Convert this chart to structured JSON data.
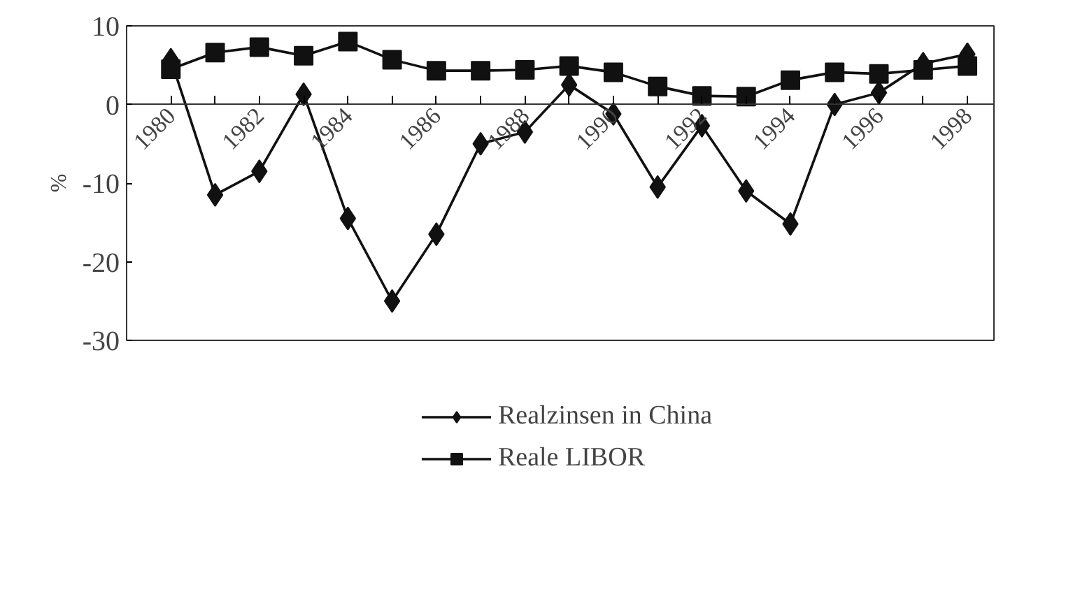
{
  "chart_data": {
    "type": "line",
    "ylabel": "%",
    "x": [
      1980,
      1981,
      1982,
      1983,
      1984,
      1985,
      1986,
      1987,
      1988,
      1989,
      1990,
      1991,
      1992,
      1993,
      1994,
      1995,
      1996,
      1997,
      1998
    ],
    "series": [
      {
        "name": "Realzinsen in China",
        "color": "#111111",
        "marker": "diamond",
        "values": [
          5.7,
          -11.5,
          -8.5,
          1.3,
          -14.5,
          -25,
          -16.5,
          -5,
          -3.5,
          2.5,
          -1.2,
          -10.5,
          -2.7,
          -11,
          -15.2,
          0,
          1.5,
          5.2,
          6.4
        ]
      },
      {
        "name": "Reale LIBOR",
        "color": "#111111",
        "marker": "square",
        "values": [
          4.5,
          6.6,
          7.3,
          6.2,
          8,
          5.7,
          4.3,
          4.3,
          4.4,
          4.9,
          4.1,
          2.3,
          1.1,
          1,
          3.1,
          4.1,
          3.9,
          4.4,
          4.9
        ]
      }
    ],
    "xlim": [
      1979.0,
      1998.6
    ],
    "ylim": [
      -30,
      10
    ],
    "xticks": [
      1980,
      {
        "value": 1981,
        "label": null
      },
      1982,
      {
        "value": 1983,
        "label": null
      },
      1984,
      {
        "value": 1985,
        "label": null
      },
      1986,
      {
        "value": 1987,
        "label": null
      },
      1988,
      {
        "value": 1989,
        "label": null
      },
      1990,
      {
        "value": 1991,
        "label": null
      },
      1992,
      {
        "value": 1993,
        "label": null
      },
      1994,
      {
        "value": 1995,
        "label": null
      },
      1996,
      {
        "value": 1997,
        "label": null
      },
      1998
    ],
    "yticks": [
      -30,
      -20,
      -10,
      0,
      10
    ],
    "grid": false,
    "legend": "bottom",
    "line_style": "solid"
  }
}
